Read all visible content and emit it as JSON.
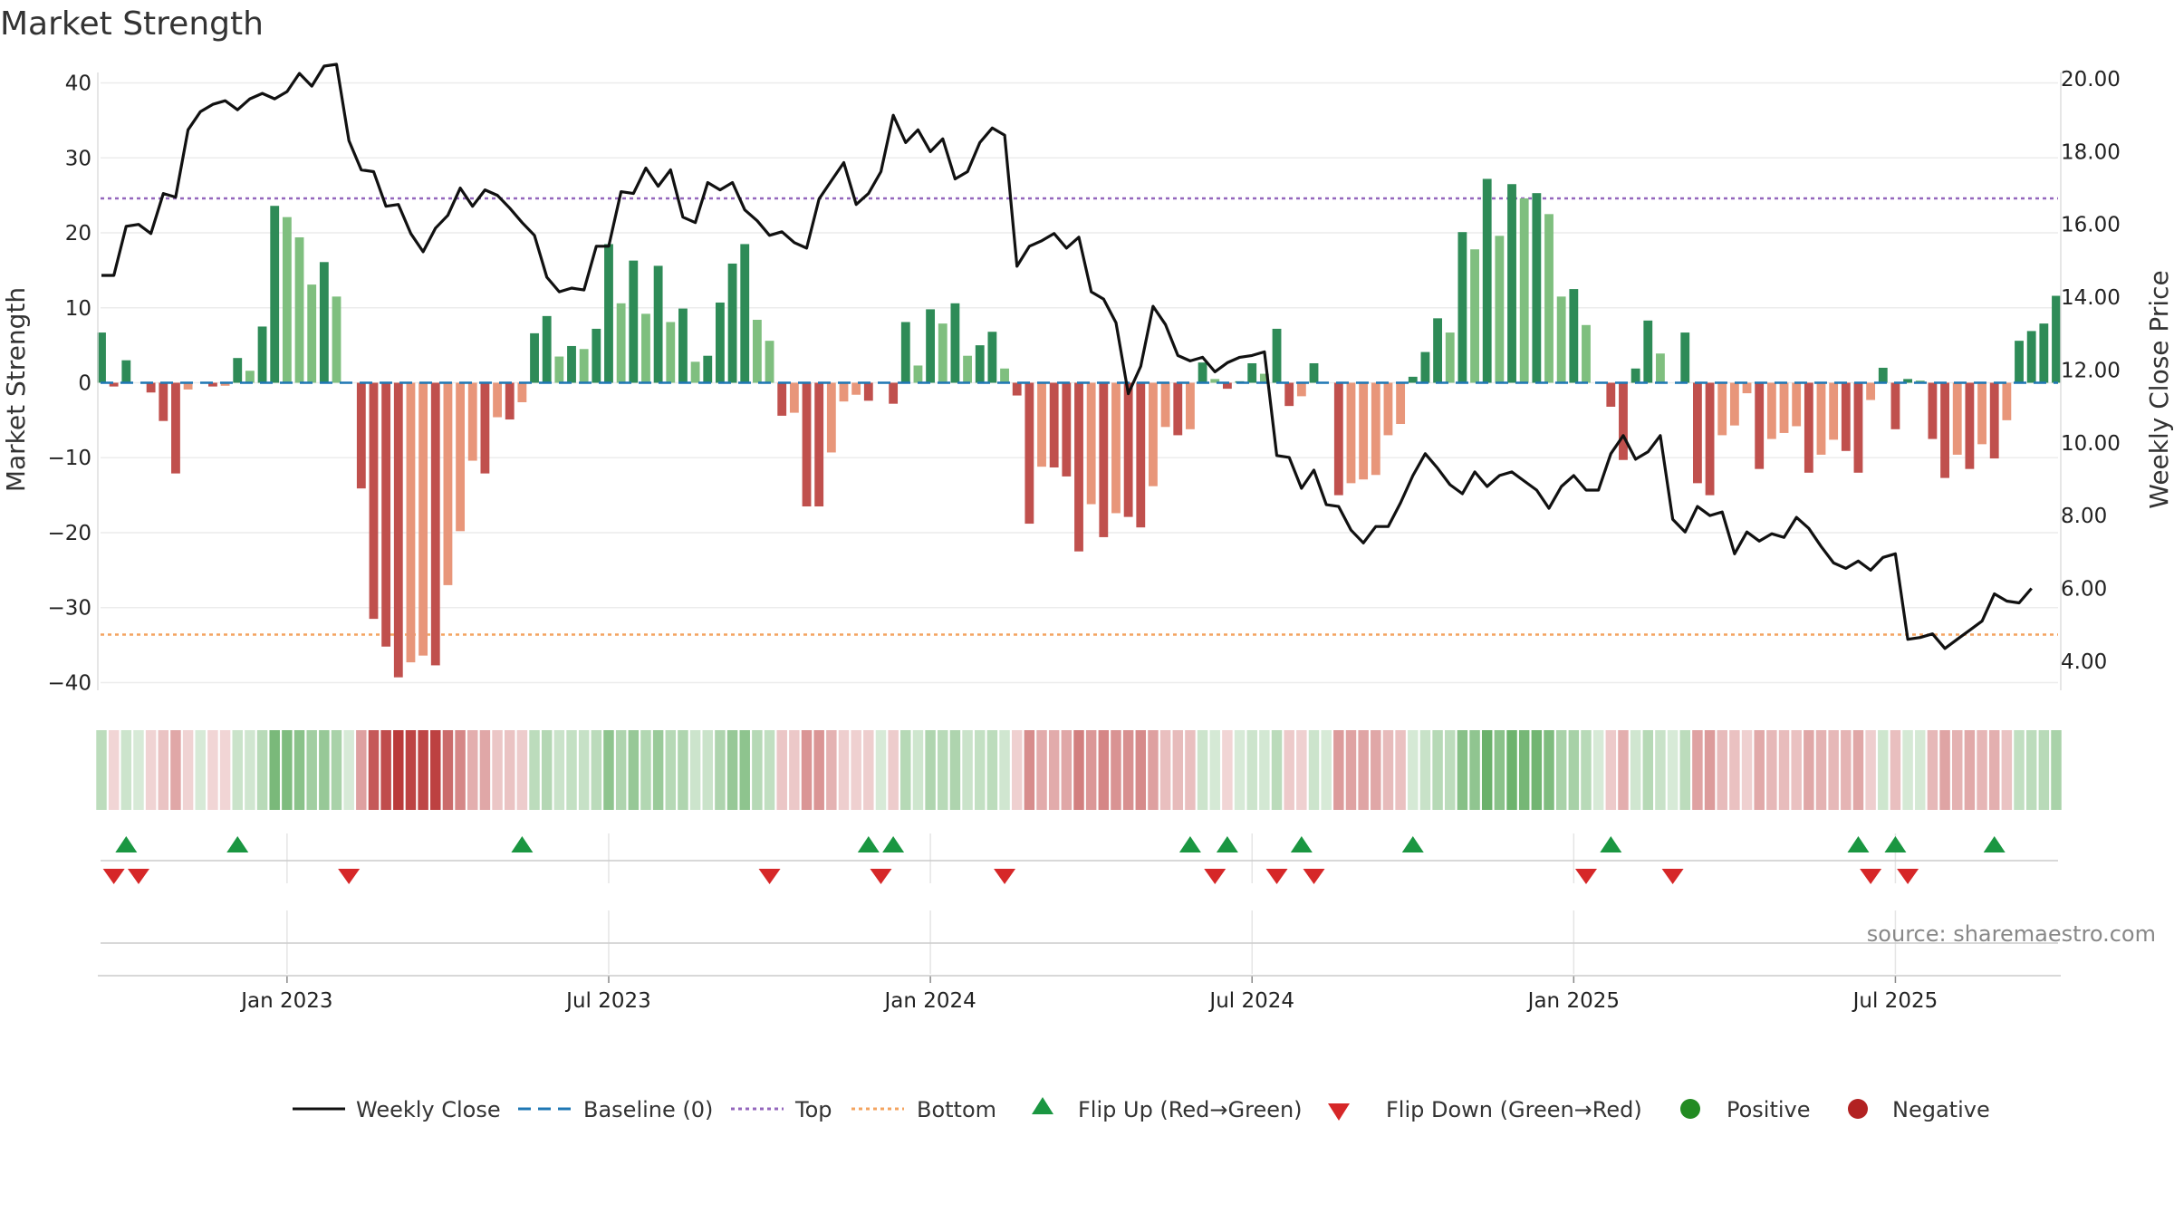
{
  "chart_data": {
    "type": "bar",
    "title": "Market Strength",
    "y_left_label": "Market Strength",
    "y_right_label": "Weekly Close Price",
    "y_left_ticks": [
      "40",
      "30",
      "20",
      "10",
      "0",
      "−10",
      "−20",
      "−30",
      "−40"
    ],
    "y_left_ticks_values": [
      40,
      30,
      20,
      10,
      0,
      -10,
      -20,
      -30,
      -40
    ],
    "y_right_ticks": [
      "20.00",
      "18.00",
      "16.00",
      "14.00",
      "12.00",
      "10.00",
      "8.00",
      "6.00",
      "4.00"
    ],
    "y_right_ticks_values": [
      20,
      18,
      16,
      14,
      12,
      10,
      8,
      6,
      4
    ],
    "y_left_range": [
      -42,
      42
    ],
    "y_right_range": [
      3.0,
      20.3
    ],
    "x_ticks": [
      "Jan 2023",
      "Jul 2023",
      "Jan 2024",
      "Jul 2024",
      "Jan 2025",
      "Jul 2025"
    ],
    "x_tick_week_index": [
      15,
      41,
      67,
      93,
      119,
      145
    ],
    "top_level": 24.6,
    "bottom_level": -33.6,
    "baseline": 0,
    "strength": [
      6.7,
      -0.5,
      3.0,
      0,
      -1.3,
      -5.1,
      -12.1,
      -0.9,
      0,
      -0.5,
      -0.4,
      3.3,
      1.6,
      7.5,
      23.6,
      22.1,
      19.4,
      13.1,
      16.1,
      11.5,
      0,
      -14.1,
      -31.5,
      -35.2,
      -39.3,
      -37.3,
      -36.4,
      -37.7,
      -27.0,
      -19.8,
      -10.4,
      -12.1,
      -4.6,
      -4.9,
      -2.6,
      6.6,
      8.9,
      3.5,
      4.9,
      4.5,
      7.2,
      18.5,
      10.6,
      16.3,
      9.2,
      15.6,
      8.1,
      9.9,
      2.8,
      3.6,
      10.7,
      15.9,
      18.5,
      8.4,
      5.6,
      -4.4,
      -4.0,
      -16.5,
      -16.5,
      -9.3,
      -2.5,
      -1.6,
      -2.4,
      0,
      -2.8,
      8.1,
      2.3,
      9.8,
      7.9,
      10.6,
      3.6,
      5.0,
      6.8,
      1.9,
      -1.7,
      -18.8,
      -11.2,
      -11.3,
      -12.5,
      -22.5,
      -16.2,
      -20.6,
      -17.4,
      -17.9,
      -19.3,
      -13.8,
      -5.9,
      -7.0,
      -6.2,
      2.7,
      0.5,
      -0.8,
      0.2,
      2.6,
      1.2,
      7.2,
      -3.1,
      -1.8,
      2.6,
      0,
      -15.0,
      -13.4,
      -12.9,
      -12.3,
      -7.0,
      -5.5,
      0.8,
      4.1,
      8.6,
      6.7,
      20.1,
      17.8,
      27.2,
      19.6,
      26.5,
      24.6,
      25.3,
      22.5,
      11.5,
      12.5,
      7.7,
      0,
      -3.2,
      -10.3,
      1.9,
      8.3,
      3.9,
      0,
      6.7,
      -13.4,
      -15.0,
      -7.0,
      -5.7,
      -1.4,
      -11.5,
      -7.5,
      -6.7,
      -5.8,
      -12.0,
      -9.6,
      -7.6,
      -9.1,
      -12.0,
      -2.3,
      2.0,
      -6.2,
      0.5,
      0.3,
      -7.5,
      -12.7,
      -9.6,
      -11.5,
      -8.2,
      -10.1,
      -5.0,
      5.6,
      6.9,
      7.9,
      11.6
    ],
    "close": [
      14.6,
      14.6,
      15.95,
      16.0,
      15.75,
      16.85,
      16.75,
      18.6,
      19.1,
      19.3,
      19.4,
      19.15,
      19.45,
      19.6,
      19.45,
      19.65,
      20.15,
      19.8,
      20.35,
      20.4,
      18.3,
      17.5,
      17.45,
      16.5,
      16.55,
      15.75,
      15.25,
      15.9,
      16.25,
      17.0,
      16.5,
      16.95,
      16.8,
      16.45,
      16.05,
      15.7,
      14.55,
      14.15,
      14.25,
      14.2,
      15.4,
      15.4,
      16.9,
      16.85,
      17.55,
      17.05,
      17.5,
      16.2,
      16.05,
      17.15,
      16.95,
      17.15,
      16.4,
      16.1,
      15.7,
      15.8,
      15.5,
      15.35,
      16.7,
      17.2,
      17.7,
      16.55,
      16.85,
      17.45,
      19.0,
      18.25,
      18.6,
      18.0,
      18.35,
      17.25,
      17.45,
      18.25,
      18.65,
      18.45,
      14.85,
      15.4,
      15.55,
      15.75,
      15.35,
      15.65,
      14.15,
      13.95,
      13.3,
      11.35,
      12.1,
      13.75,
      13.25,
      12.4,
      12.25,
      12.35,
      11.95,
      12.2,
      12.35,
      12.4,
      12.5,
      9.65,
      9.6,
      8.75,
      9.25,
      8.3,
      8.25,
      7.6,
      7.25,
      7.7,
      7.7,
      8.35,
      9.1,
      9.7,
      9.3,
      8.85,
      8.6,
      9.2,
      8.8,
      9.1,
      9.2,
      8.95,
      8.7,
      8.2,
      8.8,
      9.1,
      8.7,
      8.7,
      9.7,
      10.2,
      9.55,
      9.75,
      10.2,
      7.9,
      7.55,
      8.25,
      8.0,
      8.1,
      6.95,
      7.55,
      7.3,
      7.5,
      7.4,
      7.95,
      7.65,
      7.15,
      6.7,
      6.55,
      6.75,
      6.5,
      6.85,
      6.95,
      4.6,
      4.65,
      4.75,
      4.35,
      4.6,
      4.85,
      5.1,
      5.85,
      5.65,
      5.6,
      6.0
    ],
    "flip_up_weeks": [
      2,
      11,
      34,
      62,
      64,
      88,
      91,
      97,
      106,
      122,
      142,
      145,
      153
    ],
    "flip_down_weeks": [
      1,
      3,
      20,
      54,
      63,
      73,
      90,
      95,
      98,
      120,
      127,
      143,
      146
    ],
    "colors": {
      "strong_green": "#2e8b57",
      "light_green": "#7fbf7f",
      "strong_red": "#c0504d",
      "light_red": "#e8967a",
      "close_line": "#111111",
      "baseline": "#1f77b4",
      "top": "#9467bd",
      "bottom": "#f4a460",
      "flip_up": "#1a9641",
      "flip_down": "#d62728",
      "positive": "#228b22",
      "negative": "#b22222"
    },
    "legend": {
      "weekly_close": "Weekly Close",
      "baseline": "Baseline (0)",
      "top": "Top",
      "bottom": "Bottom",
      "flip_up": "Flip Up (Red→Green)",
      "flip_down": "Flip Down (Green→Red)",
      "positive": "Positive",
      "negative": "Negative"
    },
    "legend_placement": "bottom-center",
    "grid": true
  },
  "source": "source: sharemaestro.com"
}
